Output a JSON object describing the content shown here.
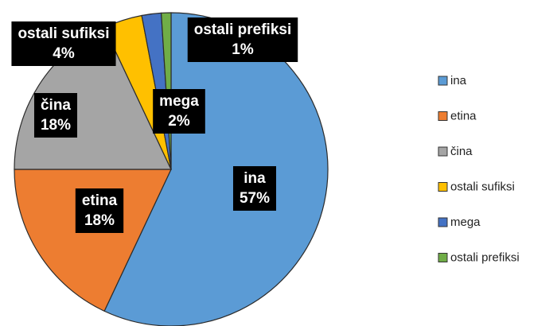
{
  "chart_data": {
    "type": "pie",
    "categories": [
      "ina",
      "etina",
      "čina",
      "ostali sufiksi",
      "mega",
      "ostali prefiksi"
    ],
    "values": [
      57,
      18,
      18,
      4,
      2,
      1
    ],
    "value_labels": [
      "57%",
      "18%",
      "18%",
      "4%",
      "2%",
      "1%"
    ],
    "colors": [
      "#5b9bd5",
      "#ed7d31",
      "#a5a5a5",
      "#ffc000",
      "#4472c4",
      "#70ad47"
    ],
    "legend": "right"
  }
}
